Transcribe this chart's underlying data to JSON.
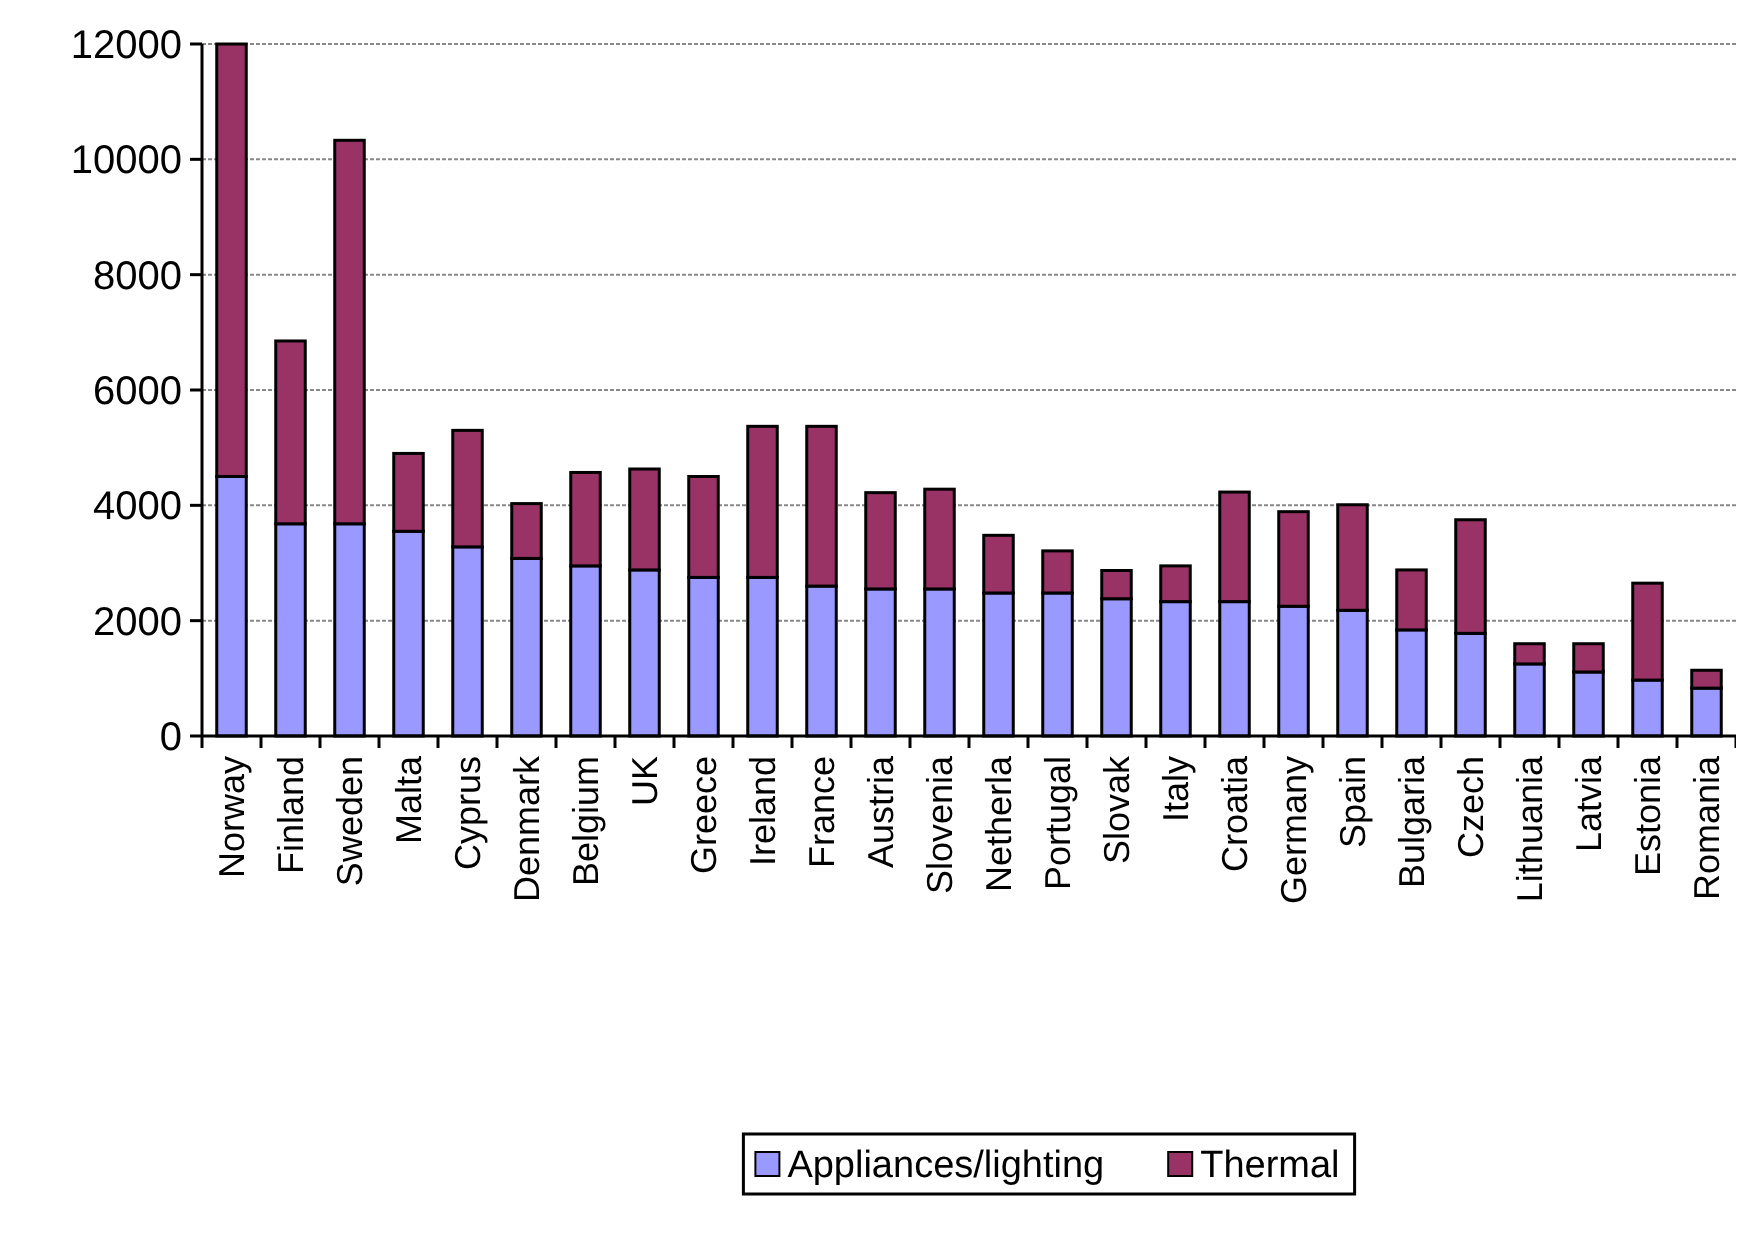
{
  "chart_data": {
    "type": "bar",
    "stacked": true,
    "categories": [
      "Norway",
      "Finland",
      "Sweden",
      "Malta",
      "Cyprus",
      "Denmark",
      "Belgium",
      "UK",
      "Greece",
      "Ireland",
      "France",
      "Austria",
      "Slovenia",
      "Netherla",
      "Portugal",
      "Slovak",
      "Italy",
      "Croatia",
      "Germany",
      "Spain",
      "Bulgaria",
      "Czech",
      "Lithuania",
      "Latvia",
      "Estonia",
      "Romania"
    ],
    "series": [
      {
        "name": "Appliances/lighting",
        "color": "#9999ff",
        "values": [
          4500,
          3680,
          3680,
          3550,
          3280,
          3080,
          2950,
          2880,
          2750,
          2750,
          2600,
          2550,
          2550,
          2480,
          2480,
          2380,
          2330,
          2330,
          2250,
          2180,
          1840,
          1780,
          1250,
          1110,
          970,
          830
        ]
      },
      {
        "name": "Thermal",
        "color": "#993366",
        "values": [
          7500,
          3170,
          6650,
          1350,
          2020,
          950,
          1620,
          1750,
          1750,
          2620,
          2770,
          1670,
          1730,
          1000,
          730,
          490,
          620,
          1900,
          1640,
          1830,
          1040,
          1970,
          350,
          490,
          1680,
          310
        ]
      }
    ],
    "ylim": [
      0,
      12000
    ],
    "yticks": [
      0,
      2000,
      4000,
      6000,
      8000,
      10000,
      12000
    ],
    "grid": "y",
    "legend": "bottom"
  }
}
